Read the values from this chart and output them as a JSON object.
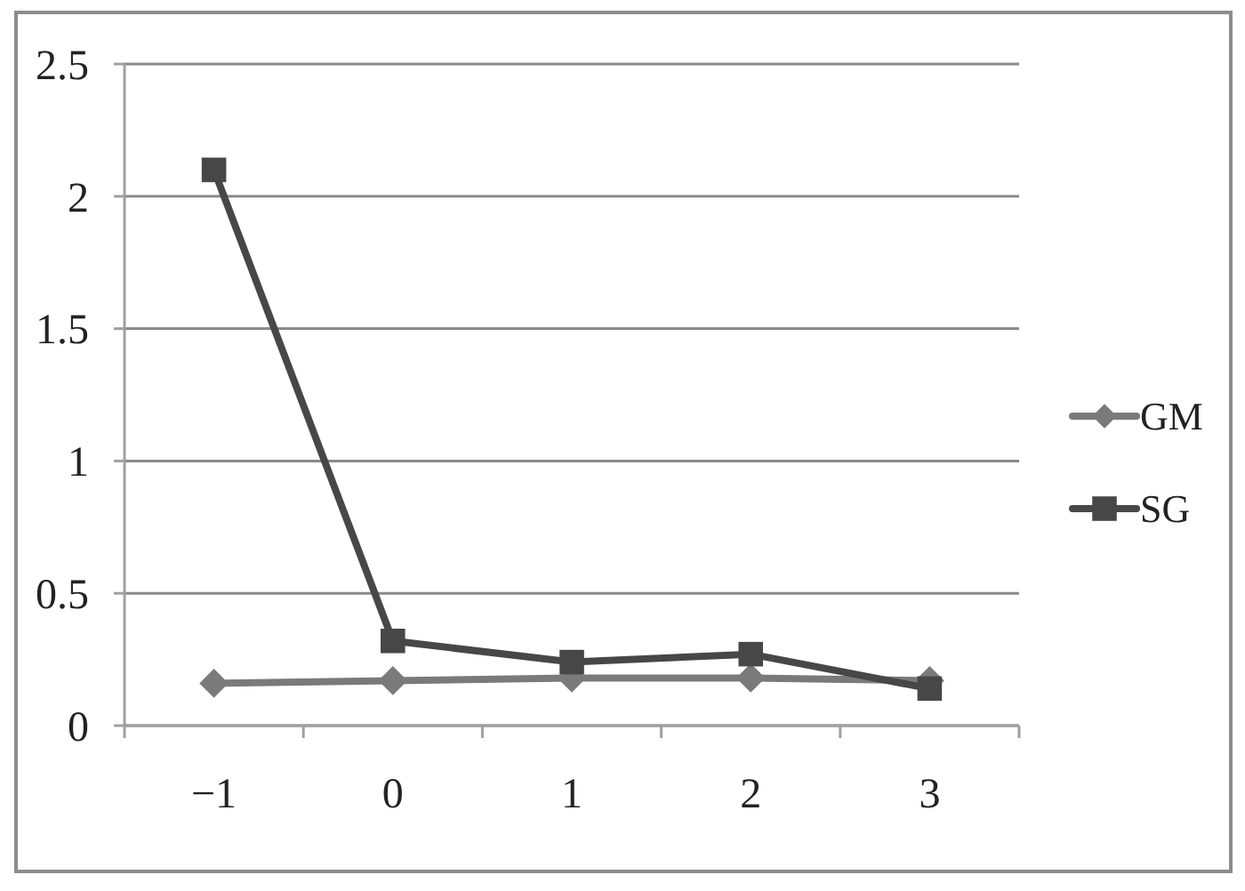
{
  "chart_data": {
    "type": "line",
    "categories": [
      "−1",
      "0",
      "1",
      "2",
      "3"
    ],
    "series": [
      {
        "name": "GM",
        "color": "#7a7a7a",
        "marker": "diamond",
        "values": [
          0.16,
          0.17,
          0.18,
          0.18,
          0.17
        ]
      },
      {
        "name": "SG",
        "color": "#474747",
        "marker": "square",
        "values": [
          2.1,
          0.32,
          0.24,
          0.27,
          0.14
        ]
      }
    ],
    "ylim": [
      0,
      2.5
    ],
    "yticks": [
      0,
      0.5,
      1,
      1.5,
      2,
      2.5
    ],
    "grid": "y",
    "legend": "right",
    "line_style": "solid"
  }
}
